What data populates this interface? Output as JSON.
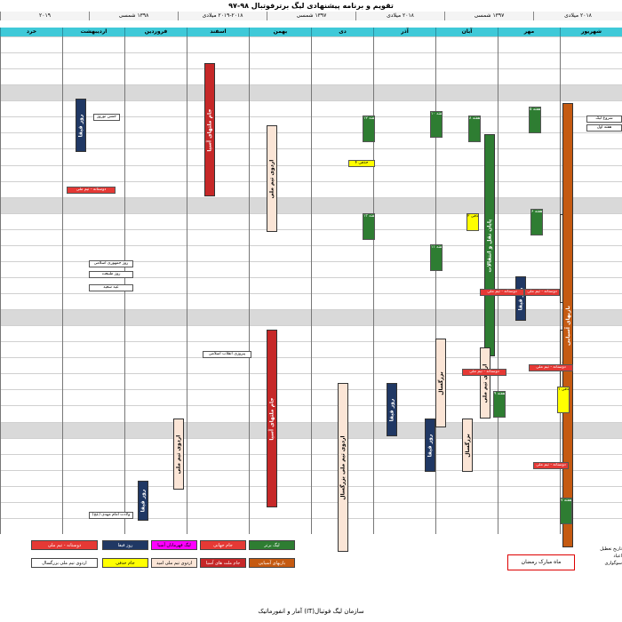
{
  "title": "تقویم و برنامه پیشنهادی لیگ برترفوتبال ۹۸-۹۷",
  "header_segments": [
    "۲۰۱۸ میلادی",
    "۱۳۹۷ شمسی",
    "۲۰۱۸ میلادی",
    "۱۳۹۷ شمسی",
    "۲۰۱۹-۲۰۱۸ میلادی",
    "۱۳۹۸ شمسی",
    "۲۰۱۹"
  ],
  "months": [
    "شهریور",
    "مهر",
    "آبان",
    "آذر",
    "دی",
    "بهمن",
    "اسفند",
    "فروردین",
    "اردیبهشت",
    "خرد"
  ],
  "footer": "آمار و انفورماتیک (IT)سازمان لیگ فوتبال",
  "colors": {
    "header": "#3fc9d8",
    "shade": "#d9d9d9",
    "league": "#2e7d32",
    "cup": "#203864",
    "friendly": "#e53935",
    "asia_champions": "#c62828",
    "asia_league": "#ff00ff",
    "national_team": "#f4b183",
    "adult_team": "#f8cbad",
    "fifa": "#203864",
    "asian_games": "#c55a11",
    "holiday": "#ffff00"
  },
  "legend": {
    "league": "لیگ برتر",
    "world_cup": "جام جهانی",
    "asia_league": "لیگ قهرمانان آسیا",
    "fifa_days": "روز فیفا",
    "friendly": "دوستانه - تیم ملی",
    "asian_games": "بازیهای آسیایی",
    "asia_nations": "جام ملت های آسیا",
    "olympic_camp": "اردوی تیم ملی امید",
    "holiday": "جام حذفی",
    "adult_camp": "اردوی تیم ملی بزرگسال",
    "ramadan": "ماه مبارک رمضان",
    "side_title": "تاریخ تعطیل",
    "side_1": "اعیاد",
    "side_2": "سوگواری"
  },
  "vertical_events": [
    {
      "text": "جام ملتهای آسیا"
    },
    {
      "text": "اردوی تیم ملی"
    },
    {
      "text": "جام ملتهای آسیا"
    },
    {
      "text": "اردوی تیم ملی بزرگسال"
    },
    {
      "text": "روز فیفا"
    },
    {
      "text": "اردوی تیم ملی"
    },
    {
      "text": "بزرگسال"
    },
    {
      "text": "پایان نقل و انتقالات"
    },
    {
      "text": "اردوی تیم ملی"
    },
    {
      "text": "بزرگسال"
    },
    {
      "text": "بازیهای آسیایی"
    },
    {
      "text": "روز فیفا"
    },
    {
      "text": "روز فیفا"
    },
    {
      "text": "روز فیفا"
    },
    {
      "text": "روز فیفا"
    },
    {
      "text": "اردوی تیم ملی"
    },
    {
      "text": "بزرگسال"
    }
  ],
  "small_events": [
    {
      "text": "هفته ۵"
    },
    {
      "text": "هفته ۸"
    },
    {
      "text": "هفته ۱۰"
    },
    {
      "text": "هفته ۱۲"
    },
    {
      "text": "هفته ۱۳"
    },
    {
      "text": "هفته ۱۱"
    },
    {
      "text": "هفته ۹"
    },
    {
      "text": "هفته ۷"
    },
    {
      "text": "هفته ۶"
    },
    {
      "text": "حذفی ۴"
    },
    {
      "text": "حذفی ۲"
    },
    {
      "text": "حذفی ۱"
    },
    {
      "text": "دوستانه - تیم ملی"
    },
    {
      "text": "دوستانه - تیم ملی"
    },
    {
      "text": "دوستانه - تیم ملی"
    },
    {
      "text": "دوستانه - تیم ملی"
    },
    {
      "text": "دوستانه - تیم ملی"
    },
    {
      "text": "دوستانه - تیم ملی"
    },
    {
      "text": "روز جمهوری اسلامی"
    },
    {
      "text": "روز طبیعت"
    },
    {
      "text": "عید سعید"
    },
    {
      "text": "جشن نوروز"
    },
    {
      "text": "پیروزی انقلاب اسلامی"
    },
    {
      "text": "ولادت امام مهدی (عج)"
    },
    {
      "text": "شروع لیگ"
    },
    {
      "text": "هفته اول"
    }
  ]
}
